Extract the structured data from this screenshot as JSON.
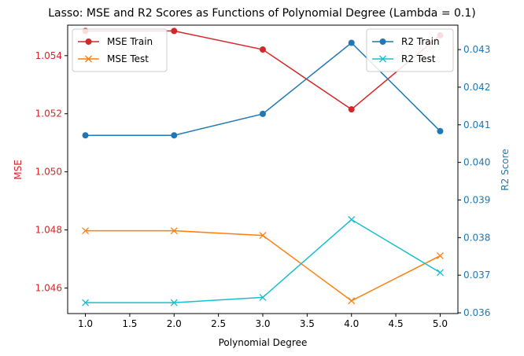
{
  "chart_data": {
    "type": "line",
    "title": "Lasso: MSE and R2 Scores as Functions of Polynomial Degree (Lambda = 0.1)",
    "xlabel": "Polynomial Degree",
    "x": [
      1,
      2,
      3,
      4,
      5
    ],
    "xticks": [
      "1.0",
      "1.5",
      "2.0",
      "2.5",
      "3.0",
      "3.5",
      "4.0",
      "4.5",
      "5.0"
    ],
    "xlim": [
      0.8,
      5.2
    ],
    "left_axis": {
      "label": "MSE",
      "color": "#d62728",
      "ylim": [
        1.04512,
        1.05505
      ],
      "ticks": [
        "1.046",
        "1.048",
        "1.050",
        "1.052",
        "1.054"
      ],
      "legend_position": "top-left",
      "series": [
        {
          "name": "MSE Train",
          "color": "#d62728",
          "marker": "circle",
          "values": [
            1.05485,
            1.05485,
            1.05421,
            1.05215,
            1.0547
          ]
        },
        {
          "name": "MSE Test",
          "color": "#ff7f0e",
          "marker": "x",
          "values": [
            1.04797,
            1.04797,
            1.04781,
            1.04556,
            1.04711
          ]
        }
      ]
    },
    "right_axis": {
      "label": "R2 Score",
      "color": "#1f77b4",
      "ylim": [
        0.03598,
        0.04365
      ],
      "ticks": [
        "0.036",
        "0.037",
        "0.038",
        "0.039",
        "0.040",
        "0.041",
        "0.042",
        "0.043"
      ],
      "legend_position": "top-right",
      "series": [
        {
          "name": "R2 Train",
          "color": "#1f77b4",
          "marker": "circle",
          "values": [
            0.04072,
            0.04072,
            0.04129,
            0.04318,
            0.04083
          ]
        },
        {
          "name": "R2 Test",
          "color": "#17becf",
          "marker": "x",
          "values": [
            0.03627,
            0.03627,
            0.03641,
            0.03848,
            0.03707
          ]
        }
      ]
    },
    "grid": false
  }
}
